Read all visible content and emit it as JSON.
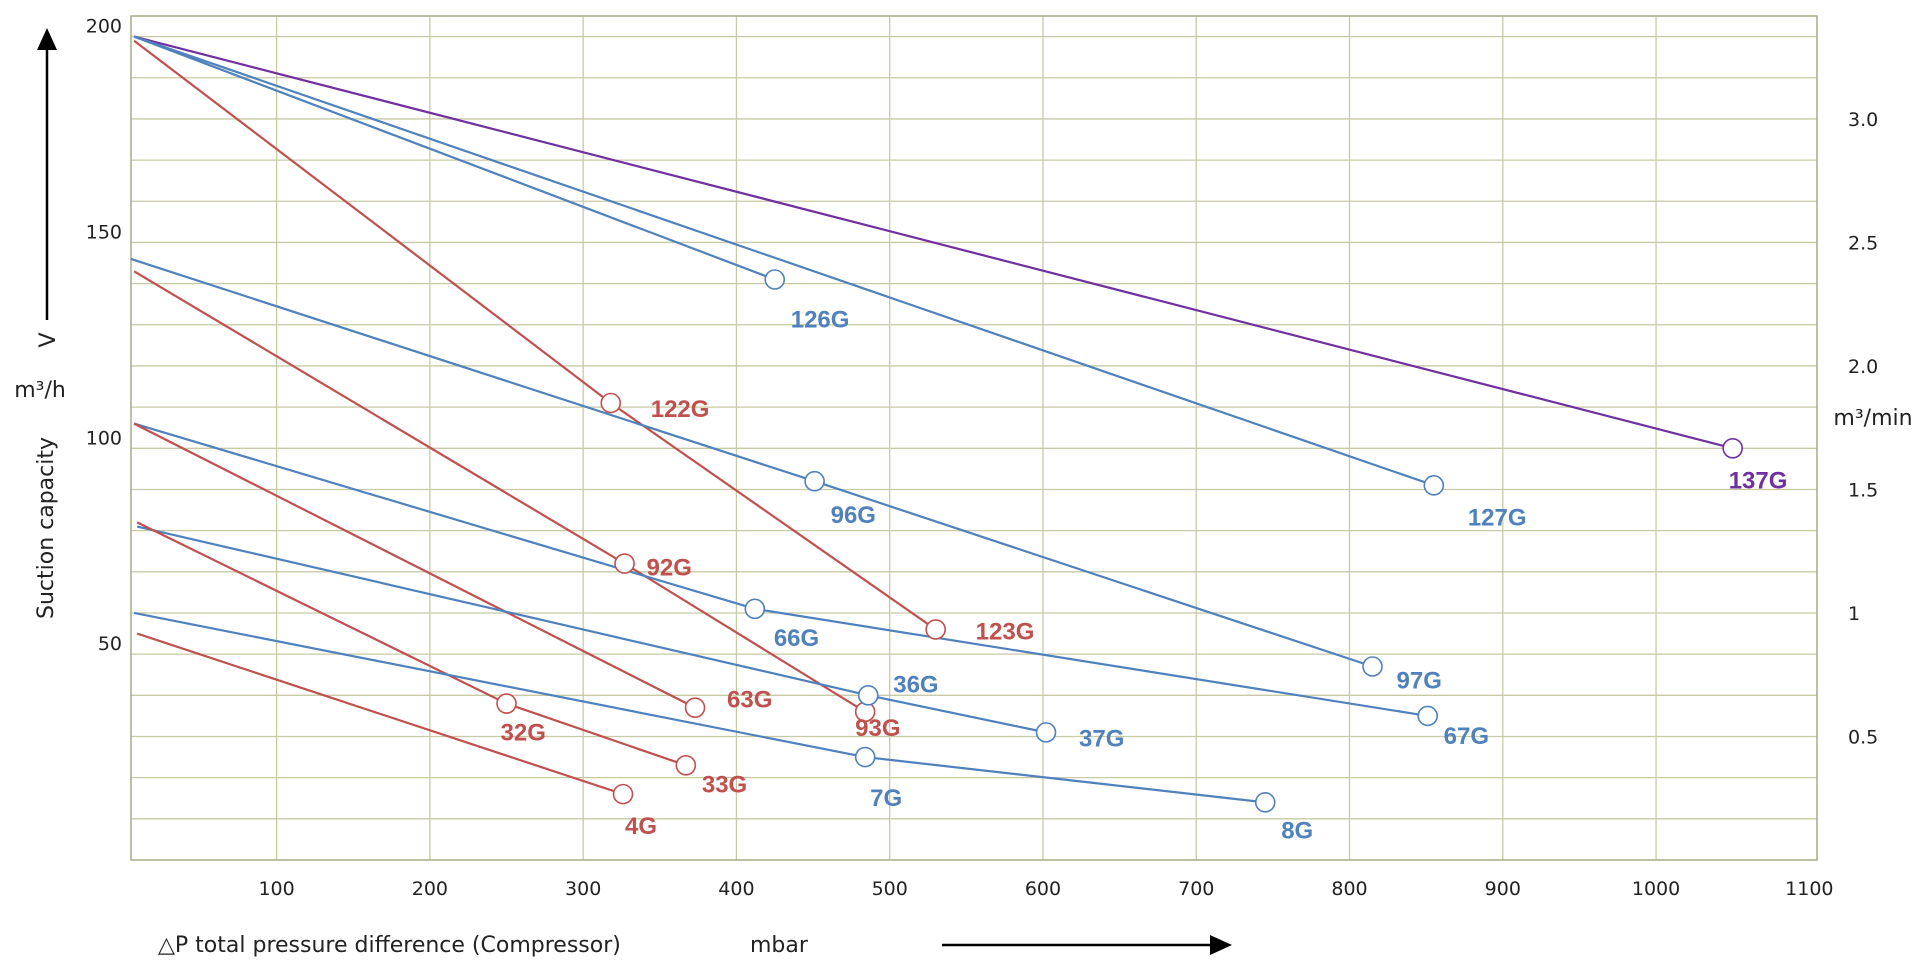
{
  "chart_data": {
    "type": "line",
    "title": "",
    "xlabel": "△P total pressure difference (Compressor)",
    "x_unit": "mbar",
    "ylabel": "Suction capacity",
    "y_symbol": "V",
    "y_unit": "m³/h",
    "y2_unit": "m³/min",
    "xlim": [
      5,
      1105
    ],
    "ylim": [
      0,
      205
    ],
    "y2_scale_note": "1 m³/min = 60 m³/h",
    "x_ticks": [
      100,
      200,
      300,
      400,
      500,
      600,
      700,
      800,
      900,
      1000,
      1100
    ],
    "y_ticks": [
      50,
      100,
      150,
      200
    ],
    "y2_ticks": [
      {
        "label": "3.0",
        "value": 3.0
      },
      {
        "label": "2.5",
        "value": 2.5
      },
      {
        "label": "2.0",
        "value": 2.0
      },
      {
        "label": "1.5",
        "value": 1.5
      },
      {
        "label": "1",
        "value": 1.0
      },
      {
        "label": "0.5",
        "value": 0.5
      }
    ],
    "grid": true,
    "colors": {
      "red": "#c0504d",
      "blue": "#4f81bd",
      "purple": "#7030a0",
      "grid": "#c8caa4"
    },
    "series": [
      {
        "name": "137G",
        "color": "purple",
        "x": [
          7,
          1050
        ],
        "y": [
          200,
          100
        ]
      },
      {
        "name": "127G",
        "color": "blue",
        "x": [
          7,
          855
        ],
        "y": [
          200,
          91
        ]
      },
      {
        "name": "126G",
        "color": "blue",
        "x": [
          7,
          425
        ],
        "y": [
          200,
          141
        ]
      },
      {
        "name": "122G",
        "color": "red",
        "x": [
          7,
          318
        ],
        "y": [
          199,
          111
        ]
      },
      {
        "name": "123G",
        "color": "red",
        "x": [
          318,
          530
        ],
        "y": [
          111,
          56
        ]
      },
      {
        "name": "96G",
        "color": "blue",
        "x": [
          5,
          451
        ],
        "y": [
          146,
          92
        ]
      },
      {
        "name": "97G",
        "color": "blue",
        "x": [
          451,
          815
        ],
        "y": [
          92,
          47
        ]
      },
      {
        "name": "92G",
        "color": "red",
        "x": [
          7,
          327
        ],
        "y": [
          143,
          72
        ]
      },
      {
        "name": "93G",
        "color": "red",
        "x": [
          327,
          484
        ],
        "y": [
          72,
          36
        ]
      },
      {
        "name": "66G",
        "color": "blue",
        "x": [
          7,
          412
        ],
        "y": [
          106,
          61
        ]
      },
      {
        "name": "67G",
        "color": "blue",
        "x": [
          412,
          851
        ],
        "y": [
          61,
          35
        ]
      },
      {
        "name": "63G",
        "color": "red",
        "x": [
          7,
          373
        ],
        "y": [
          106,
          37
        ]
      },
      {
        "name": "36G",
        "color": "blue",
        "x": [
          9,
          486
        ],
        "y": [
          81,
          40
        ]
      },
      {
        "name": "37G",
        "color": "blue",
        "x": [
          486,
          602
        ],
        "y": [
          40,
          31
        ]
      },
      {
        "name": "32G",
        "color": "red",
        "x": [
          9,
          250
        ],
        "y": [
          82,
          38
        ]
      },
      {
        "name": "33G",
        "color": "red",
        "x": [
          250,
          367
        ],
        "y": [
          38,
          23
        ]
      },
      {
        "name": "7G",
        "color": "blue",
        "x": [
          7,
          484
        ],
        "y": [
          60,
          25
        ]
      },
      {
        "name": "8G",
        "color": "blue",
        "x": [
          484,
          745
        ],
        "y": [
          25,
          14
        ]
      },
      {
        "name": "4G",
        "color": "red",
        "x": [
          9,
          326
        ],
        "y": [
          55,
          16
        ]
      }
    ]
  }
}
